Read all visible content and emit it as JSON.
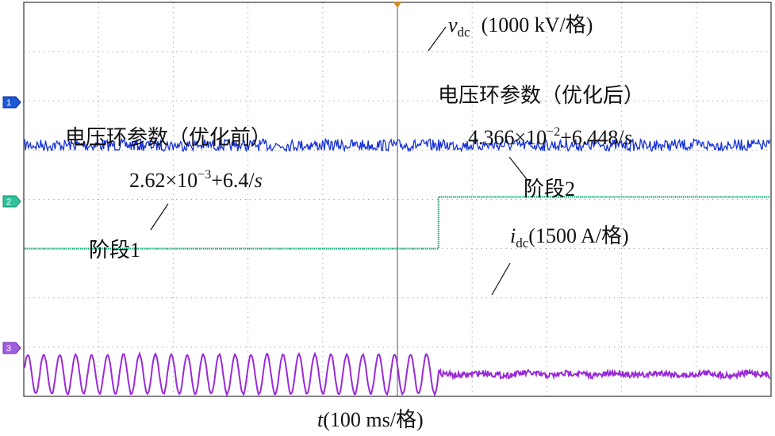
{
  "chart_data": {
    "type": "line",
    "title": "",
    "xlabel": {
      "var": "t",
      "unit": "(100 ms/格)"
    },
    "grid": true,
    "divisions": {
      "x": 10,
      "y": 8
    },
    "colors": {
      "vdc": "#1530d8",
      "stage": "#17b07e",
      "idc": "#9a2ad8",
      "grid": "#9a9a9a",
      "frame": "#333333"
    },
    "channel_markers": [
      "1",
      "2",
      "3"
    ],
    "series": [
      {
        "name": "vdc",
        "label_var": "v",
        "label_sub": "dc",
        "label_scale": "(1000 kV/格)",
        "level_div": 2.9,
        "noise_div": 0.12
      },
      {
        "name": "stage",
        "label_before": "阶段1",
        "label_after": "阶段2",
        "low_div": 5.0,
        "high_div": 3.95,
        "step_div": 5.55
      },
      {
        "name": "idc",
        "label_var": "i",
        "label_sub": "dc",
        "label_scale": "(1500 A/格)",
        "center_div": 7.55,
        "amp_before_div": 0.4,
        "amp_after_div": 0.06,
        "cycles_before": 26
      }
    ],
    "annotations": {
      "before_title": "电压环参数（优化前）",
      "before_formula": {
        "base": "2.62×10",
        "exp": "−3",
        "tail": "+6.4/",
        "var": "s"
      },
      "after_title": "电压环参数（优化后）",
      "after_formula": {
        "base": "4.366×10",
        "exp": "−2",
        "tail": "+6.448/",
        "var": "s"
      }
    }
  }
}
